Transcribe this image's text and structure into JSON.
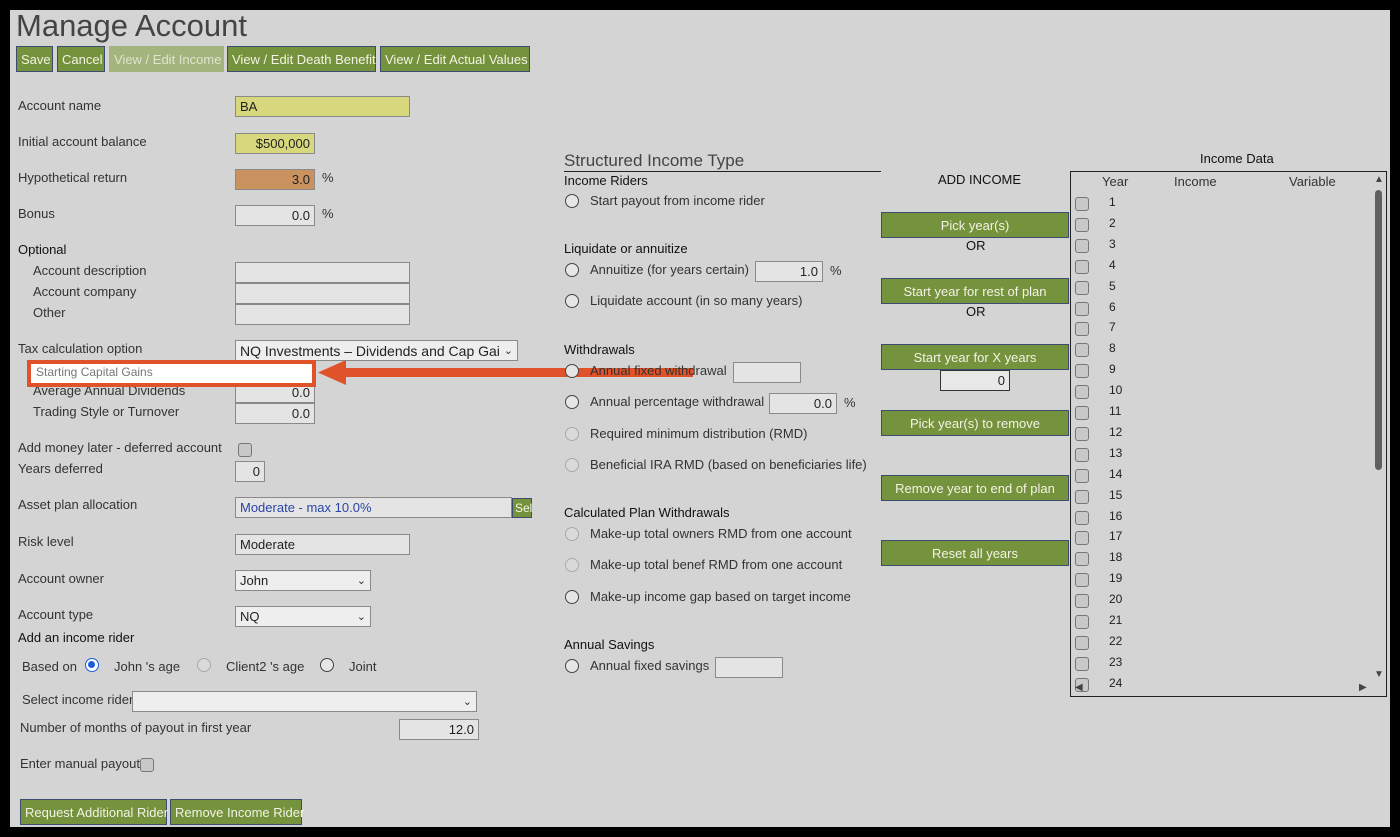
{
  "page_title": "Manage Account",
  "toolbar": {
    "save": "Save",
    "cancel": "Cancel",
    "view_edit_income": "View / Edit Income",
    "view_edit_death_benefit": "View / Edit Death Benefit",
    "view_edit_actual_values": "View / Edit Actual Values"
  },
  "account": {
    "name_label": "Account name",
    "name_value": "BA",
    "initial_balance_label": "Initial account balance",
    "initial_balance_value": "$500,000",
    "hypothetical_return_label": "Hypothetical return",
    "hypothetical_return_value": "3.0",
    "bonus_label": "Bonus",
    "bonus_value": "0.0",
    "percent_symbol": "%"
  },
  "optional": {
    "heading": "Optional",
    "description_label": "Account description",
    "company_label": "Account company",
    "other_label": "Other"
  },
  "tax": {
    "label": "Tax calculation option",
    "selected": "NQ Investments – Dividends and Cap Gai",
    "starting_capital_gains_label": "Starting Capital Gains",
    "average_dividends_label": "Average Annual Dividends",
    "average_dividends_value": "0.0",
    "trading_style_label": "Trading Style or Turnover",
    "trading_style_value": "0.0"
  },
  "deferred": {
    "add_money_label": "Add money later - deferred account",
    "years_deferred_label": "Years deferred",
    "years_deferred_value": "0"
  },
  "allocation": {
    "label": "Asset plan allocation",
    "value": "Moderate - max 10.0%",
    "select_button": "Sel"
  },
  "risk": {
    "label": "Risk level",
    "value": "Moderate"
  },
  "owner": {
    "label": "Account owner",
    "selected": "John"
  },
  "type": {
    "label": "Account type",
    "selected": "NQ"
  },
  "income_rider": {
    "heading": "Add an income rider",
    "based_on_label": "Based on",
    "option_john": "John 's age",
    "option_client2": "Client2 's age",
    "option_joint": "Joint",
    "select_label": "Select income rider",
    "months_label": "Number of months of payout in first year",
    "months_value": "12.0",
    "manual_payout_label": "Enter manual payout",
    "request_button": "Request Additional Rider",
    "remove_button": "Remove Income Rider"
  },
  "structured": {
    "heading": "Structured Income Type",
    "income_riders_heading": "Income Riders",
    "start_payout": "Start payout from income rider",
    "liquidate_heading": "Liquidate or annuitize",
    "annuitize": "Annuitize (for years certain)",
    "annuitize_value": "1.0",
    "liquidate": "Liquidate account (in so many years)",
    "withdrawals_heading": "Withdrawals",
    "annual_fixed_withdrawal": "Annual fixed withdrawal",
    "annual_percentage_withdrawal": "Annual percentage withdrawal",
    "annual_percentage_value": "0.0",
    "rmd": "Required minimum distribution (RMD)",
    "beneficial_rmd": "Beneficial IRA RMD (based on beneficiaries life)",
    "calculated_heading": "Calculated Plan Withdrawals",
    "makeup_owners": "Make-up total owners RMD from one account",
    "makeup_benef": "Make-up total benef RMD from one account",
    "makeup_gap": "Make-up income gap based on target income",
    "savings_heading": "Annual Savings",
    "annual_fixed_savings": "Annual fixed savings"
  },
  "add_income": {
    "heading": "ADD INCOME",
    "pick_years": "Pick year(s)",
    "or1": "OR",
    "start_rest": "Start year for rest of plan",
    "or2": "OR",
    "start_x": "Start year for X years",
    "x_years_value": "0",
    "pick_remove": "Pick year(s) to remove",
    "remove_end": "Remove year to end of plan",
    "reset_all": "Reset all years"
  },
  "income_data": {
    "heading": "Income Data",
    "col_year": "Year",
    "col_income": "Income",
    "col_variable": "Variable",
    "years": [
      "1",
      "2",
      "3",
      "4",
      "5",
      "6",
      "7",
      "8",
      "9",
      "10",
      "11",
      "12",
      "13",
      "14",
      "15",
      "16",
      "17",
      "18",
      "19",
      "20",
      "21",
      "22",
      "23",
      "24"
    ]
  }
}
